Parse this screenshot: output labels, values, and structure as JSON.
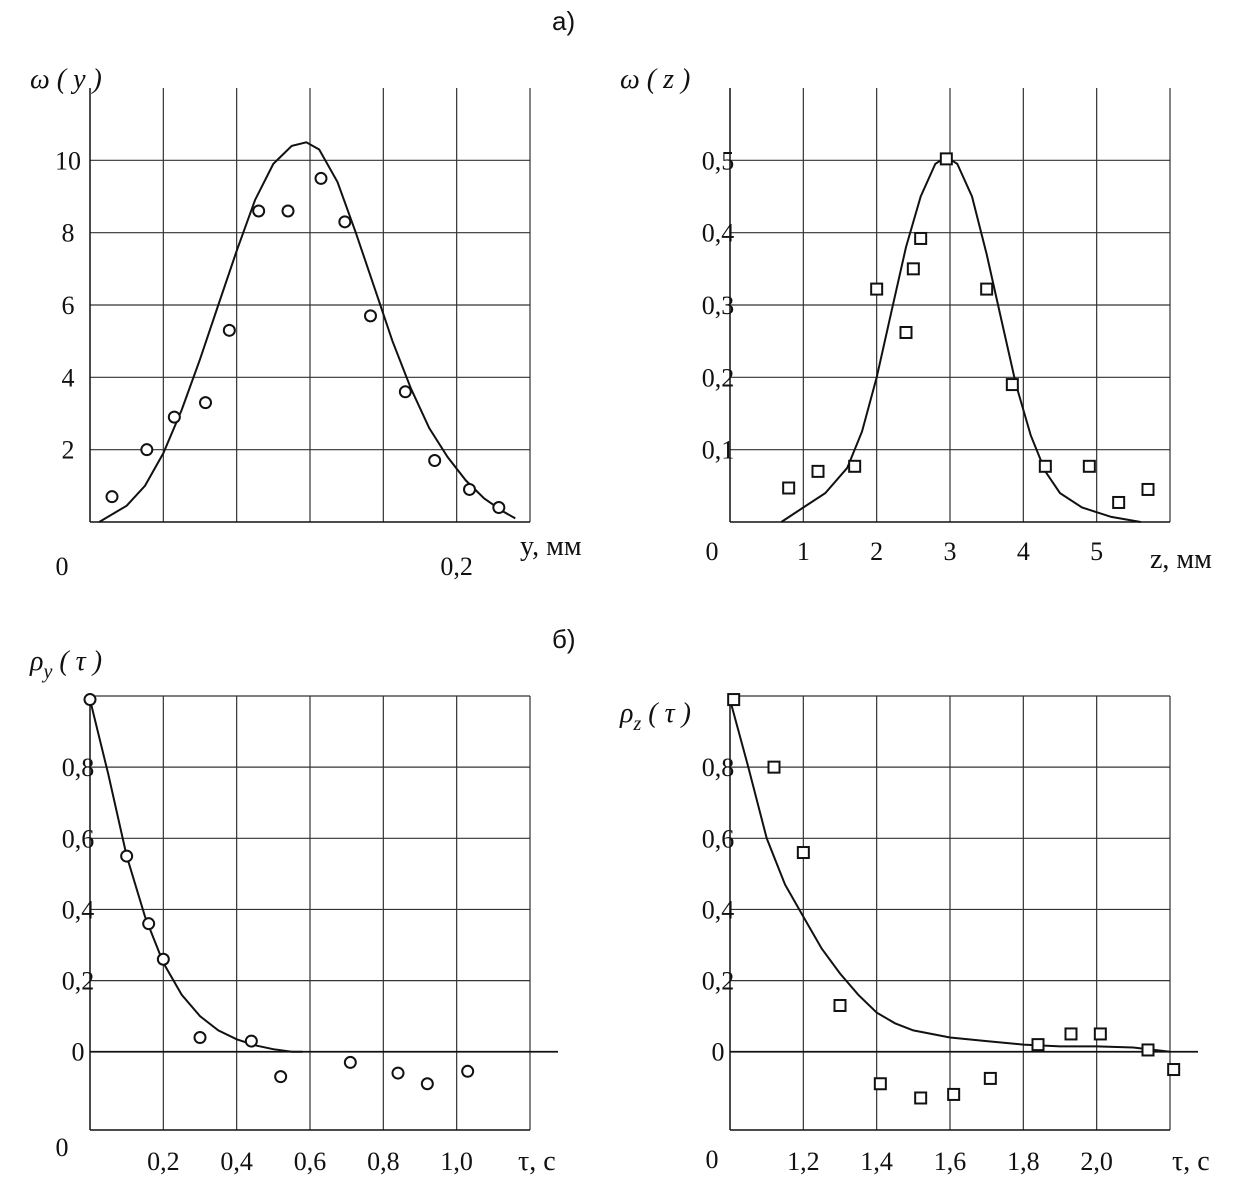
{
  "figure": {
    "label_a": "а)",
    "label_b": "б)"
  },
  "chart_data": [
    {
      "id": "wy",
      "type": "scatter",
      "ylabel": "ω ( y )",
      "xlabel": "y, мм",
      "origin_label": "0",
      "x_ticks": [
        {
          "v": 0.2,
          "label": "0,2"
        }
      ],
      "y_ticks": [
        {
          "v": 2,
          "label": "2"
        },
        {
          "v": 4,
          "label": "4"
        },
        {
          "v": 6,
          "label": "6"
        },
        {
          "v": 8,
          "label": "8"
        },
        {
          "v": 10,
          "label": "10"
        }
      ],
      "grid_x": [
        0.04,
        0.08,
        0.12,
        0.16,
        0.2,
        0.24
      ],
      "grid_y": [
        2,
        4,
        6,
        8,
        10
      ],
      "xlim": [
        0,
        0.24
      ],
      "ylim": [
        0,
        12
      ],
      "marker": "circle",
      "points": [
        [
          0.012,
          0.7
        ],
        [
          0.031,
          2.0
        ],
        [
          0.046,
          2.9
        ],
        [
          0.063,
          3.3
        ],
        [
          0.076,
          5.3
        ],
        [
          0.092,
          8.6
        ],
        [
          0.108,
          8.6
        ],
        [
          0.126,
          9.5
        ],
        [
          0.139,
          8.3
        ],
        [
          0.153,
          5.7
        ],
        [
          0.172,
          3.6
        ],
        [
          0.188,
          1.7
        ],
        [
          0.207,
          0.9
        ],
        [
          0.223,
          0.4
        ]
      ],
      "curve": [
        [
          0.005,
          0.0
        ],
        [
          0.02,
          0.45
        ],
        [
          0.03,
          1.0
        ],
        [
          0.04,
          1.9
        ],
        [
          0.05,
          3.1
        ],
        [
          0.06,
          4.5
        ],
        [
          0.07,
          6.0
        ],
        [
          0.08,
          7.5
        ],
        [
          0.09,
          8.9
        ],
        [
          0.1,
          9.9
        ],
        [
          0.11,
          10.4
        ],
        [
          0.118,
          10.5
        ],
        [
          0.125,
          10.3
        ],
        [
          0.135,
          9.4
        ],
        [
          0.145,
          8.0
        ],
        [
          0.155,
          6.5
        ],
        [
          0.165,
          5.0
        ],
        [
          0.175,
          3.7
        ],
        [
          0.185,
          2.6
        ],
        [
          0.195,
          1.8
        ],
        [
          0.205,
          1.15
        ],
        [
          0.215,
          0.65
        ],
        [
          0.225,
          0.3
        ],
        [
          0.232,
          0.1
        ]
      ]
    },
    {
      "id": "wz",
      "type": "scatter",
      "ylabel": "ω ( z )",
      "xlabel": "z, мм",
      "origin_label": "0",
      "x_ticks": [
        {
          "v": 1,
          "label": "1"
        },
        {
          "v": 2,
          "label": "2"
        },
        {
          "v": 3,
          "label": "3"
        },
        {
          "v": 4,
          "label": "4"
        },
        {
          "v": 5,
          "label": "5"
        }
      ],
      "y_ticks": [
        {
          "v": 0.1,
          "label": "0,1"
        },
        {
          "v": 0.2,
          "label": "0,2"
        },
        {
          "v": 0.3,
          "label": "0,3"
        },
        {
          "v": 0.4,
          "label": "0,4"
        },
        {
          "v": 0.5,
          "label": "0,5"
        }
      ],
      "grid_x": [
        1,
        2,
        3,
        4,
        5,
        6
      ],
      "grid_y": [
        0.1,
        0.2,
        0.3,
        0.4,
        0.5
      ],
      "xlim": [
        0,
        6
      ],
      "ylim": [
        0,
        0.6
      ],
      "marker": "square",
      "points": [
        [
          0.8,
          0.047
        ],
        [
          1.2,
          0.07
        ],
        [
          1.7,
          0.077
        ],
        [
          2.0,
          0.322
        ],
        [
          2.4,
          0.262
        ],
        [
          2.5,
          0.35
        ],
        [
          2.6,
          0.392
        ],
        [
          2.95,
          0.502
        ],
        [
          3.5,
          0.322
        ],
        [
          3.85,
          0.19
        ],
        [
          4.3,
          0.077
        ],
        [
          4.9,
          0.077
        ],
        [
          5.3,
          0.027
        ],
        [
          5.7,
          0.045
        ]
      ],
      "curve": [
        [
          0.7,
          0.0
        ],
        [
          1.0,
          0.02
        ],
        [
          1.3,
          0.04
        ],
        [
          1.6,
          0.075
        ],
        [
          1.8,
          0.125
        ],
        [
          2.0,
          0.2
        ],
        [
          2.2,
          0.29
        ],
        [
          2.4,
          0.38
        ],
        [
          2.6,
          0.45
        ],
        [
          2.8,
          0.495
        ],
        [
          2.95,
          0.505
        ],
        [
          3.1,
          0.495
        ],
        [
          3.3,
          0.45
        ],
        [
          3.5,
          0.37
        ],
        [
          3.7,
          0.28
        ],
        [
          3.9,
          0.19
        ],
        [
          4.1,
          0.12
        ],
        [
          4.3,
          0.07
        ],
        [
          4.5,
          0.04
        ],
        [
          4.8,
          0.02
        ],
        [
          5.2,
          0.007
        ],
        [
          5.6,
          0.0
        ]
      ]
    },
    {
      "id": "ry",
      "type": "scatter",
      "ylabel": "ρ",
      "ylabel_sub": "y",
      "ylabel_tail": "( τ )",
      "xlabel": "τ, c",
      "origin_label": "0",
      "x_ticks": [
        {
          "v": 0.2,
          "label": "0,2"
        },
        {
          "v": 0.4,
          "label": "0,4"
        },
        {
          "v": 0.6,
          "label": "0,6"
        },
        {
          "v": 0.8,
          "label": "0,8"
        },
        {
          "v": 1.0,
          "label": "1,0"
        }
      ],
      "y_ticks": [
        {
          "v": 0,
          "label": "0"
        },
        {
          "v": 0.2,
          "label": "0,2"
        },
        {
          "v": 0.4,
          "label": "0,4"
        },
        {
          "v": 0.6,
          "label": "0,6"
        },
        {
          "v": 0.8,
          "label": "0,8"
        }
      ],
      "grid_x": [
        0.2,
        0.4,
        0.6,
        0.8,
        1.0,
        1.2
      ],
      "grid_y": [
        0.2,
        0.4,
        0.6,
        0.8,
        1.0
      ],
      "zero_line": 0,
      "xlim": [
        0,
        1.2
      ],
      "ylim": [
        -0.22,
        1.0
      ],
      "marker": "circle",
      "points": [
        [
          0.0,
          0.99
        ],
        [
          0.1,
          0.55
        ],
        [
          0.16,
          0.36
        ],
        [
          0.2,
          0.26
        ],
        [
          0.3,
          0.04
        ],
        [
          0.44,
          0.03
        ],
        [
          0.52,
          -0.07
        ],
        [
          0.71,
          -0.03
        ],
        [
          0.84,
          -0.06
        ],
        [
          0.92,
          -0.09
        ],
        [
          1.03,
          -0.055
        ]
      ],
      "curve": [
        [
          0.0,
          0.99
        ],
        [
          0.05,
          0.78
        ],
        [
          0.1,
          0.55
        ],
        [
          0.15,
          0.38
        ],
        [
          0.2,
          0.25
        ],
        [
          0.25,
          0.16
        ],
        [
          0.3,
          0.1
        ],
        [
          0.35,
          0.06
        ],
        [
          0.4,
          0.035
        ],
        [
          0.45,
          0.018
        ],
        [
          0.5,
          0.007
        ],
        [
          0.55,
          0.0
        ],
        [
          0.58,
          0.0
        ]
      ]
    },
    {
      "id": "rz",
      "type": "scatter",
      "ylabel": "ρ",
      "ylabel_sub": "z",
      "ylabel_tail": "( τ )",
      "xlabel": "τ, c",
      "origin_label": "0",
      "x_ticks": [
        {
          "v": 1.2,
          "label": "1,2"
        },
        {
          "v": 1.4,
          "label": "1,4"
        },
        {
          "v": 1.6,
          "label": "1,6"
        },
        {
          "v": 1.8,
          "label": "1,8"
        },
        {
          "v": 2.0,
          "label": "2,0"
        }
      ],
      "y_ticks": [
        {
          "v": 0,
          "label": "0"
        },
        {
          "v": 0.2,
          "label": "0,2"
        },
        {
          "v": 0.4,
          "label": "0,4"
        },
        {
          "v": 0.6,
          "label": "0,6"
        },
        {
          "v": 0.8,
          "label": "0,8"
        }
      ],
      "grid_x": [
        1.2,
        1.4,
        1.6,
        1.8,
        2.0,
        2.2
      ],
      "grid_y": [
        0.2,
        0.4,
        0.6,
        0.8,
        1.0
      ],
      "zero_line": 0,
      "xlim": [
        1.0,
        2.2
      ],
      "ylim": [
        -0.22,
        1.0
      ],
      "marker": "square",
      "points": [
        [
          1.01,
          0.99
        ],
        [
          1.12,
          0.8
        ],
        [
          1.2,
          0.56
        ],
        [
          1.3,
          0.13
        ],
        [
          1.41,
          -0.09
        ],
        [
          1.52,
          -0.13
        ],
        [
          1.61,
          -0.12
        ],
        [
          1.71,
          -0.075
        ],
        [
          1.84,
          0.02
        ],
        [
          1.93,
          0.05
        ],
        [
          2.01,
          0.05
        ],
        [
          2.14,
          0.005
        ],
        [
          2.21,
          -0.05
        ]
      ],
      "curve": [
        [
          1.0,
          0.99
        ],
        [
          1.05,
          0.8
        ],
        [
          1.1,
          0.6
        ],
        [
          1.15,
          0.47
        ],
        [
          1.2,
          0.38
        ],
        [
          1.25,
          0.29
        ],
        [
          1.3,
          0.22
        ],
        [
          1.35,
          0.16
        ],
        [
          1.4,
          0.11
        ],
        [
          1.45,
          0.08
        ],
        [
          1.5,
          0.06
        ],
        [
          1.6,
          0.04
        ],
        [
          1.7,
          0.03
        ],
        [
          1.8,
          0.02
        ],
        [
          1.9,
          0.015
        ],
        [
          2.0,
          0.015
        ],
        [
          2.1,
          0.012
        ],
        [
          2.2,
          0.0
        ]
      ]
    }
  ]
}
